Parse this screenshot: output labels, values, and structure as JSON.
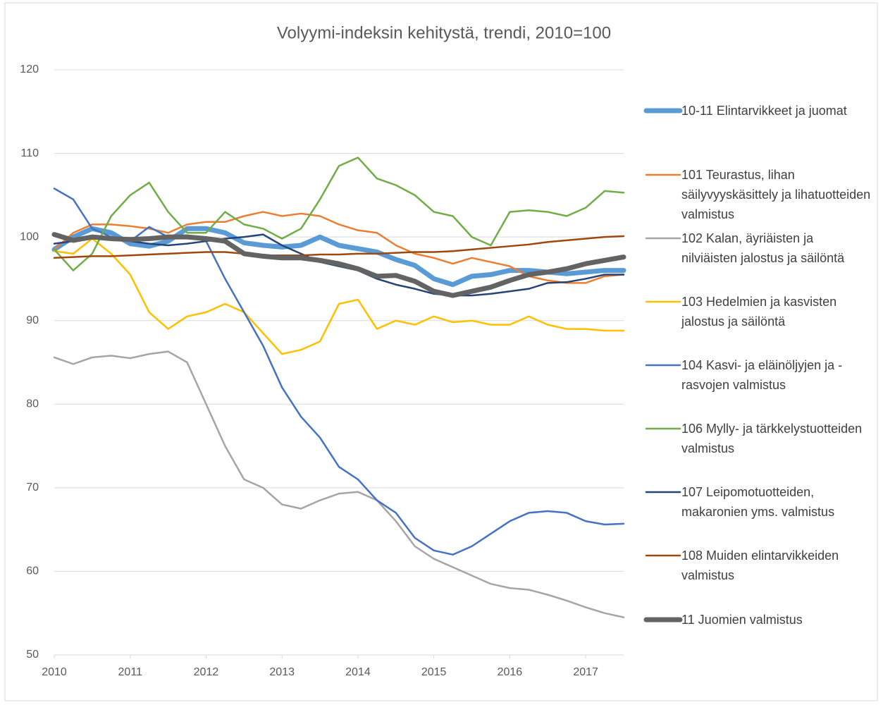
{
  "chart_data": {
    "type": "line",
    "title": "Volyymi-indeksin kehitystä, trendi, 2010=100",
    "x": [
      2010,
      2010.25,
      2010.5,
      2010.75,
      2011,
      2011.25,
      2011.5,
      2011.75,
      2012,
      2012.25,
      2012.5,
      2012.75,
      2013,
      2013.25,
      2013.5,
      2013.75,
      2014,
      2014.25,
      2014.5,
      2014.75,
      2015,
      2015.25,
      2015.5,
      2015.75,
      2016,
      2016.25,
      2016.5,
      2016.75,
      2017,
      2017.25,
      2017.5
    ],
    "xlim": [
      2010,
      2017.5
    ],
    "xticks": [
      2010,
      2011,
      2012,
      2013,
      2014,
      2015,
      2016,
      2017
    ],
    "ylim": [
      50,
      120
    ],
    "yticks": [
      50,
      60,
      70,
      80,
      90,
      100,
      110,
      120
    ],
    "grid": true,
    "legend": "right",
    "series": [
      {
        "name": "10-11 Elintarvikkeet ja juomat",
        "color": "#5b9bd5",
        "line_width": 7,
        "values": [
          98.5,
          100,
          101,
          100.5,
          99.2,
          98.9,
          99.5,
          101,
          101,
          100.5,
          99.3,
          99,
          98.8,
          99,
          100,
          99,
          98.6,
          98.2,
          97.3,
          96.6,
          95,
          94.3,
          95.3,
          95.5,
          96,
          96,
          95.8,
          95.6,
          95.8,
          96,
          96
        ]
      },
      {
        "name": "101 Teurastus, lihan säilyvyyskäsittely ja lihatuotteiden valmistus",
        "color": "#ed7d31",
        "line_width": 2.5,
        "values": [
          98.5,
          100.5,
          101.5,
          101.5,
          101.3,
          101,
          100.5,
          101.5,
          101.8,
          101.8,
          102.5,
          103,
          102.5,
          102.8,
          102.5,
          101.5,
          100.8,
          100.5,
          99,
          98,
          97.5,
          96.8,
          97.5,
          97,
          96.5,
          95.3,
          94.8,
          94.5,
          94.5,
          95.3,
          95.5
        ]
      },
      {
        "name": "102 Kalan, äyriäisten ja nilviäisten jalostus ja säilöntä",
        "color": "#a5a5a5",
        "line_width": 2.5,
        "values": [
          85.6,
          84.8,
          85.6,
          85.8,
          85.5,
          86,
          86.3,
          85,
          80,
          75,
          71,
          70,
          68,
          67.5,
          68.5,
          69.3,
          69.5,
          68.5,
          66,
          63,
          61.5,
          60.5,
          59.5,
          58.5,
          58,
          57.8,
          57.2,
          56.5,
          55.7,
          55,
          54.5
        ]
      },
      {
        "name": "103 Hedelmien ja kasvisten jalostus ja säilöntä",
        "color": "#ffc000",
        "line_width": 2.5,
        "values": [
          98.3,
          98,
          99.8,
          98,
          95.5,
          91,
          89,
          90.5,
          91,
          92,
          91,
          88.5,
          86,
          86.5,
          87.5,
          92,
          92.5,
          89,
          90,
          89.5,
          90.5,
          89.8,
          90,
          89.5,
          89.5,
          90.5,
          89.5,
          89,
          89,
          88.8,
          88.8
        ]
      },
      {
        "name": "104 Kasvi- ja eläinöljyjen ja -rasvojen valmistus",
        "color": "#4472c4",
        "line_width": 2.5,
        "values": [
          105.8,
          104.5,
          101,
          100,
          99.5,
          101.2,
          100,
          100.2,
          99.5,
          95,
          91,
          87,
          82,
          78.5,
          76,
          72.5,
          71,
          68.5,
          67,
          64,
          62.5,
          62,
          63,
          64.5,
          66,
          67,
          67.2,
          67,
          66,
          65.6,
          65.7
        ]
      },
      {
        "name": "106 Mylly- ja tärkkelystuotteiden valmistus",
        "color": "#70ad47",
        "line_width": 2.5,
        "values": [
          98.5,
          96,
          98,
          102.5,
          105,
          106.5,
          103,
          100.5,
          100.5,
          103,
          101.5,
          101,
          99.8,
          101,
          104.5,
          108.5,
          109.5,
          107,
          106.2,
          105,
          103,
          102.5,
          100,
          99,
          103,
          103.2,
          103,
          102.5,
          103.5,
          105.5,
          105.3
        ]
      },
      {
        "name": "107 Leipomotuotteiden, makaronien yms. valmistus",
        "color": "#264478",
        "line_width": 2.5,
        "values": [
          99.2,
          99.5,
          99.8,
          99.8,
          99.5,
          99.2,
          99,
          99.2,
          99.5,
          99.8,
          100,
          100.3,
          99,
          98,
          97,
          96.5,
          96,
          95,
          94.3,
          93.8,
          93.2,
          93,
          93,
          93.2,
          93.5,
          93.8,
          94.5,
          94.6,
          95,
          95.5,
          95.5
        ]
      },
      {
        "name": "108 Muiden elintarvikkeiden valmistus",
        "color": "#9e480e",
        "line_width": 2.5,
        "values": [
          97.5,
          97.6,
          97.7,
          97.7,
          97.8,
          97.9,
          98,
          98.1,
          98.2,
          98.2,
          98,
          97.8,
          97.8,
          97.8,
          97.9,
          97.9,
          98,
          98,
          98.1,
          98.2,
          98.2,
          98.3,
          98.5,
          98.7,
          98.9,
          99.1,
          99.4,
          99.6,
          99.8,
          100,
          100.1
        ]
      },
      {
        "name": "11 Juomien valmistus",
        "color": "#636363",
        "line_width": 7,
        "values": [
          100.3,
          99.6,
          100,
          99.8,
          99.7,
          99.8,
          100,
          100,
          99.8,
          99.5,
          98,
          97.7,
          97.5,
          97.5,
          97.2,
          96.8,
          96.2,
          95.3,
          95.4,
          94.7,
          93.5,
          93,
          93.5,
          94,
          94.8,
          95.5,
          95.8,
          96.2,
          96.8,
          97.2,
          97.6
        ]
      }
    ]
  }
}
